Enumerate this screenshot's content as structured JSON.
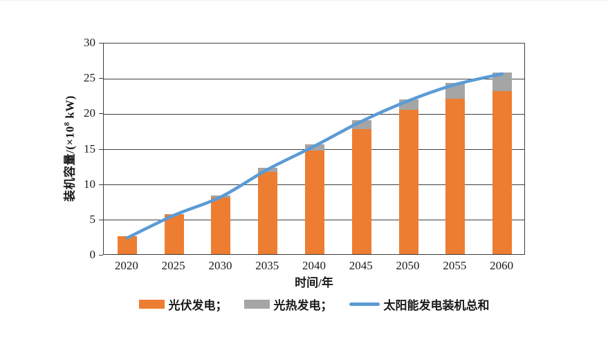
{
  "chart_data": {
    "type": "bar",
    "subtype": "stacked-bars-with-total-line",
    "title": "",
    "xlabel": "时间/年",
    "ylabel": "装机容量/(×10⁸ kW)",
    "ylabel_prefix": "装机容量/(×10",
    "ylabel_sup": "8",
    "ylabel_suffix": " kW)",
    "categories": [
      "2020",
      "2025",
      "2030",
      "2035",
      "2040",
      "2045",
      "2050",
      "2055",
      "2060"
    ],
    "series": [
      {
        "name": "光伏发电",
        "type": "bar",
        "color": "#ED7D31",
        "values": [
          2.5,
          5.6,
          8.0,
          11.6,
          14.7,
          17.7,
          20.4,
          22.0,
          23.1
        ]
      },
      {
        "name": "光热发电",
        "type": "bar",
        "color": "#A5A5A5",
        "values": [
          0.0,
          0.1,
          0.3,
          0.6,
          0.8,
          1.3,
          1.5,
          2.2,
          2.6
        ]
      },
      {
        "name": "太阳能发电装机总和",
        "type": "line",
        "color": "#5B9BD5",
        "values": [
          2.5,
          5.7,
          8.3,
          12.2,
          15.5,
          19.0,
          21.9,
          24.2,
          25.7
        ]
      }
    ],
    "ylim": [
      0,
      30
    ],
    "yticks": [
      0,
      5,
      10,
      15,
      20,
      25,
      30
    ],
    "grid": true,
    "gridline_color": "#3d3d3d",
    "legend_position": "bottom",
    "legend": [
      {
        "label": "光伏发电；",
        "swatch": "bar",
        "color": "#ED7D31"
      },
      {
        "label": "光热发电；",
        "swatch": "bar",
        "color": "#A5A5A5"
      },
      {
        "label": "太阳能发电装机总和",
        "swatch": "line",
        "color": "#5B9BD5"
      }
    ]
  },
  "colors": {
    "pv_bar": "#ED7D31",
    "csp_bar": "#A5A5A5",
    "total_line": "#5B9BD5",
    "axis": "#3d3d3d",
    "text": "#1a1a1a",
    "background": "#ffffff"
  }
}
